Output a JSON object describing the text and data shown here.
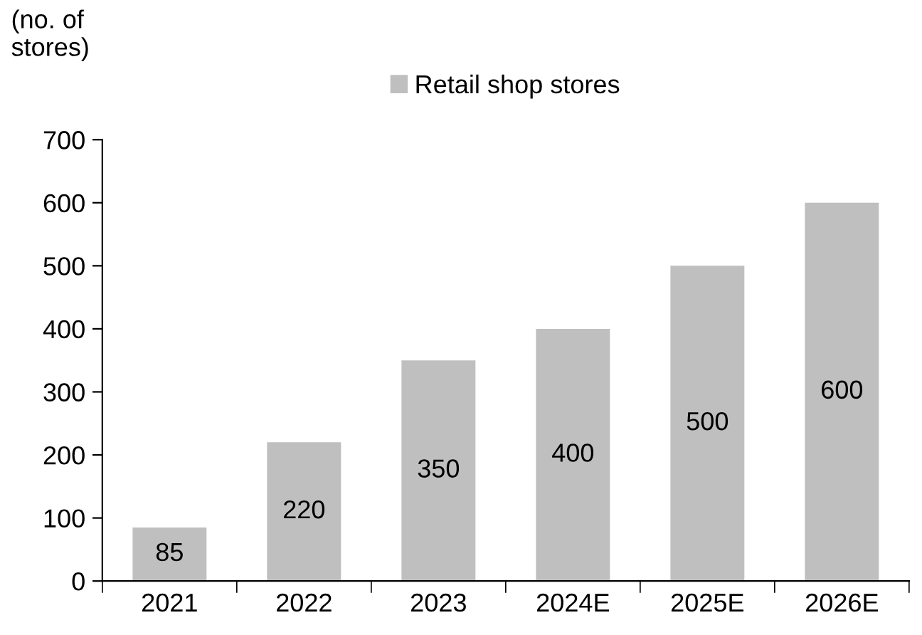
{
  "chart_data": {
    "type": "bar",
    "ylabel": "(no. of\nstores)",
    "categories": [
      "2021",
      "2022",
      "2023",
      "2024E",
      "2025E",
      "2026E"
    ],
    "series": [
      {
        "name": "Retail shop stores",
        "color": "#bfbfbf",
        "values": [
          85,
          220,
          350,
          400,
          500,
          600
        ]
      }
    ],
    "ylim": [
      0,
      700
    ],
    "yticks": [
      0,
      100,
      200,
      300,
      400,
      500,
      600,
      700
    ],
    "data_labels": true,
    "legend": "top",
    "grid": false
  }
}
